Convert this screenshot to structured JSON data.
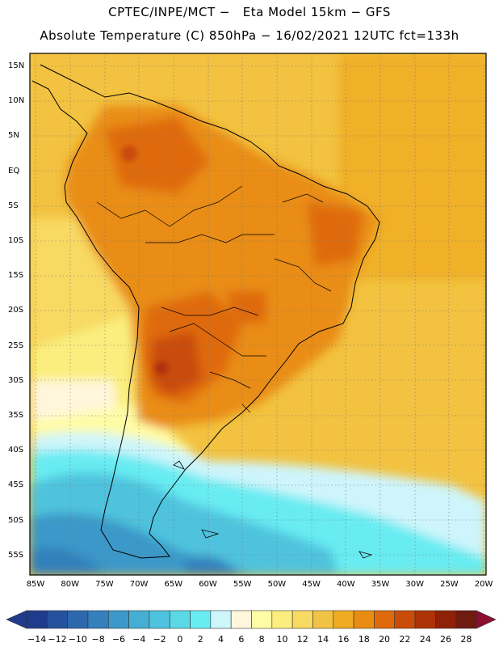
{
  "header": {
    "title_line1": "CPTEC/INPE/MCT −   Eta Model 15km − GFS",
    "title_line2": "Absolute Temperature (C) 850hPa − 16/02/2021 12UTC fct=133h"
  },
  "map": {
    "lat_labels": [
      "15N",
      "10N",
      "5N",
      "EQ",
      "5S",
      "10S",
      "15S",
      "20S",
      "25S",
      "30S",
      "35S",
      "40S",
      "45S",
      "50S",
      "55S"
    ],
    "lon_labels": [
      "85W",
      "80W",
      "75W",
      "70W",
      "65W",
      "60W",
      "55W",
      "50W",
      "45W",
      "40W",
      "35W",
      "30W",
      "25W",
      "20W"
    ]
  },
  "colorbar": {
    "labels": [
      "−14",
      "−12",
      "−10",
      "−8",
      "−6",
      "−4",
      "−2",
      "0",
      "2",
      "4",
      "6",
      "8",
      "10",
      "12",
      "14",
      "16",
      "18",
      "20",
      "22",
      "24",
      "26",
      "28"
    ],
    "colors": [
      "#1f3b8c",
      "#25519d",
      "#2d68ad",
      "#3380bc",
      "#3b98c8",
      "#45aed3",
      "#4fc3dd",
      "#5ad8e6",
      "#68ecf2",
      "#cef5fb",
      "#fff6dc",
      "#fffca6",
      "#fbee7e",
      "#f8d962",
      "#f1c345",
      "#efab21",
      "#e98d12",
      "#df6a0c",
      "#c94c0a",
      "#ad3309",
      "#8e2108",
      "#6f1b10",
      "#8b0f2e"
    ]
  }
}
